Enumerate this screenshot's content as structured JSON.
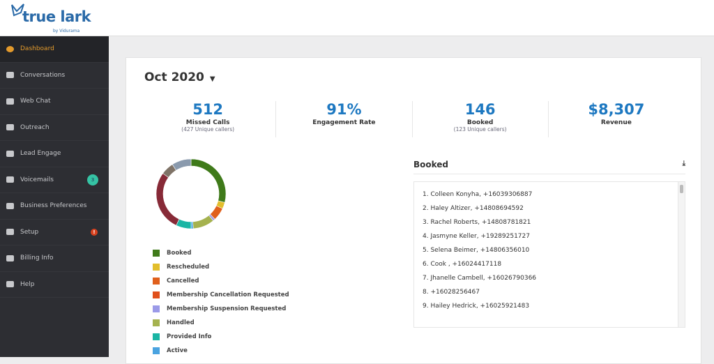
{
  "logo": {
    "name": "true lark",
    "by": "by Vidurama"
  },
  "sidebar": {
    "items": [
      {
        "label": "Dashboard",
        "icon": "dashboard-icon",
        "active": true
      },
      {
        "label": "Conversations",
        "icon": "chat-icon"
      },
      {
        "label": "Web Chat",
        "icon": "users-icon"
      },
      {
        "label": "Outreach",
        "icon": "folder-icon"
      },
      {
        "label": "Lead Engage",
        "icon": "copy-icon"
      },
      {
        "label": "Voicemails",
        "icon": "voicemail-icon",
        "badge": "3"
      },
      {
        "label": "Business Preferences",
        "icon": "store-icon"
      },
      {
        "label": "Setup",
        "icon": "gear-icon",
        "alert": "!"
      },
      {
        "label": "Billing Info",
        "icon": "credit-card-icon"
      },
      {
        "label": "Help",
        "icon": "help-icon"
      }
    ]
  },
  "main": {
    "month": "Oct 2020",
    "stats": [
      {
        "value": "512",
        "label": "Missed Calls",
        "sub": "(427 Unique callers)"
      },
      {
        "value": "91%",
        "label": "Engagement Rate",
        "sub": ""
      },
      {
        "value": "146",
        "label": "Booked",
        "sub": "(123 Unique callers)"
      },
      {
        "value": "$8,307",
        "label": "Revenue",
        "sub": ""
      }
    ],
    "booked": {
      "title": "Booked",
      "items": [
        "1. Colleen Konyha, +16039306887",
        "2. Haley Altizer, +14808694592",
        "3. Rachel Roberts, +14808781821",
        "4. Jasmyne Keller, +19289251727",
        "5. Selena Beimer, +14806356010",
        "6. Cook , +16024417118",
        "7. Jhanelle Cambell, +16026790366",
        "8. +16028256467",
        "9. Hailey Hedrick, +16025921483"
      ]
    }
  },
  "chart_data": {
    "type": "pie",
    "donut": true,
    "slices": [
      {
        "name": "Booked",
        "value": 29,
        "color": "#3f7a1a"
      },
      {
        "name": "Rescheduled",
        "value": 3,
        "color": "#e2be2c"
      },
      {
        "name": "Cancelled",
        "value": 6,
        "color": "#e0601c"
      },
      {
        "name": "Membership Cancellation Requested",
        "value": 0,
        "color": "#e0501c"
      },
      {
        "name": "Membership Suspension Requested",
        "value": 1,
        "color": "#9b9ae8"
      },
      {
        "name": "Handled",
        "value": 10,
        "color": "#a5b24f"
      },
      {
        "name": "Active",
        "value": 1,
        "color": "#4aa3e0"
      },
      {
        "name": "Provided Info",
        "value": 7,
        "color": "#1bb5a4"
      },
      {
        "name": "",
        "value": 28,
        "color": "#872a37"
      },
      {
        "name": "",
        "value": 6,
        "color": "#7f7367"
      },
      {
        "name": "",
        "value": 9,
        "color": "#8a9aad"
      }
    ],
    "legend": [
      {
        "name": "Booked",
        "color": "#3f7a1a"
      },
      {
        "name": "Rescheduled",
        "color": "#e2be2c"
      },
      {
        "name": "Cancelled",
        "color": "#e0601c"
      },
      {
        "name": "Membership Cancellation Requested",
        "color": "#e0501c"
      },
      {
        "name": "Membership Suspension Requested",
        "color": "#9b9ae8"
      },
      {
        "name": "Handled",
        "color": "#a5b24f"
      },
      {
        "name": "Provided Info",
        "color": "#1bb5a4"
      },
      {
        "name": "Active",
        "color": "#4aa3e0"
      }
    ],
    "legend_placement": "bottom"
  }
}
